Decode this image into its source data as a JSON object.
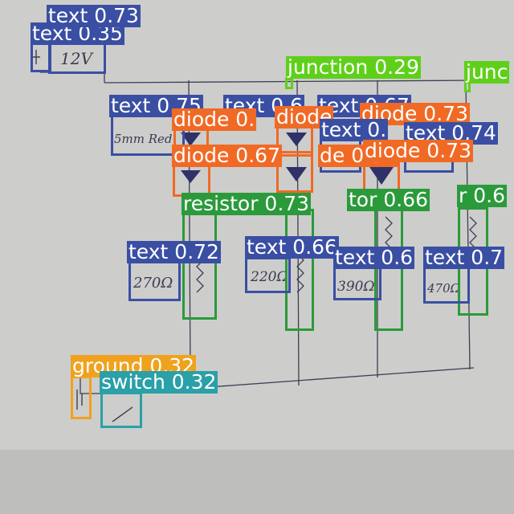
{
  "colors": {
    "text": "#3a4fa3",
    "diode": "#f06a25",
    "resistor": "#2b9a3b",
    "junction": "#5fd01a",
    "ground": "#f0a21e",
    "switch": "#2aa0a8"
  },
  "handwriting": {
    "battery_voltage": "12V",
    "led_size": "5mm Red",
    "r1": "270Ω",
    "r2": "220Ω",
    "r3": "390Ω",
    "r4": "470Ω"
  },
  "detections": [
    {
      "cls": "text",
      "label": "text 0.35"
    },
    {
      "cls": "text",
      "label": "text 0.73"
    },
    {
      "cls": "junction",
      "label": "junction 0.29"
    },
    {
      "cls": "junction",
      "label": "junc"
    },
    {
      "cls": "text",
      "label": "text 0.75"
    },
    {
      "cls": "text",
      "label": "text 0.6"
    },
    {
      "cls": "text",
      "label": "text 0.67"
    },
    {
      "cls": "diode",
      "label": "diode 0."
    },
    {
      "cls": "diode",
      "label": "diode"
    },
    {
      "cls": "diode",
      "label": "diode 0.73"
    },
    {
      "cls": "text",
      "label": "text 0."
    },
    {
      "cls": "text",
      "label": "text 0.74"
    },
    {
      "cls": "diode",
      "label": "diode 0.67"
    },
    {
      "cls": "diode",
      "label": "de 0.57"
    },
    {
      "cls": "diode",
      "label": "diode 0.73"
    },
    {
      "cls": "resistor",
      "label": "resistor 0.73"
    },
    {
      "cls": "resistor",
      "label": "tor 0.66"
    },
    {
      "cls": "resistor",
      "label": "r 0.6"
    },
    {
      "cls": "text",
      "label": "text 0.72"
    },
    {
      "cls": "text",
      "label": "text 0.66"
    },
    {
      "cls": "text",
      "label": "text 0.6"
    },
    {
      "cls": "text",
      "label": "text 0.7"
    },
    {
      "cls": "ground",
      "label": "ground 0.32"
    },
    {
      "cls": "switch",
      "label": "switch 0.32"
    }
  ]
}
